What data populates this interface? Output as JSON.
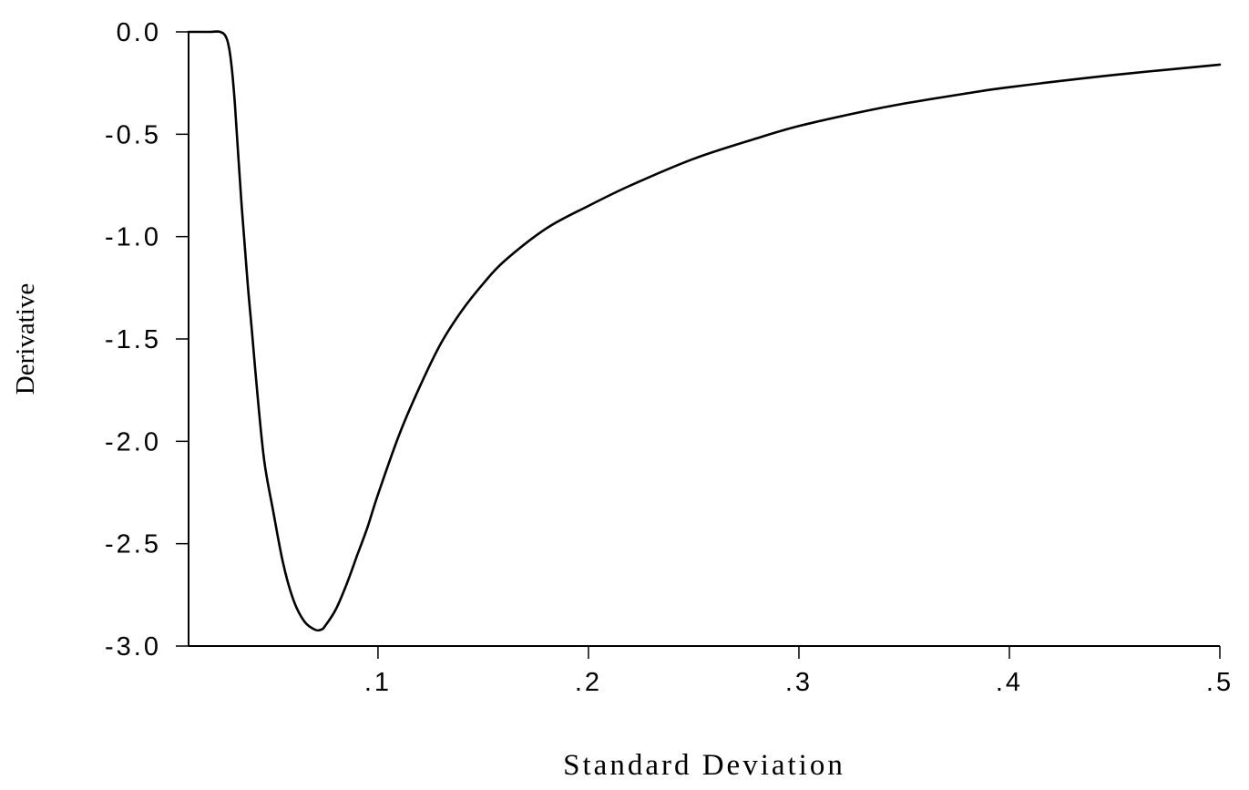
{
  "chart_data": {
    "type": "line",
    "title": "",
    "xlabel": "Standard Deviation",
    "ylabel": "Derivative",
    "xlim": [
      0.01,
      0.5
    ],
    "ylim": [
      -3.0,
      0.0
    ],
    "x_ticks": [
      0.1,
      0.2,
      0.3,
      0.4,
      0.5
    ],
    "x_tick_labels": [
      ".1",
      ".2",
      ".3",
      ".4",
      ".5"
    ],
    "y_ticks": [
      0.0,
      -0.5,
      -1.0,
      -1.5,
      -2.0,
      -2.5,
      -3.0
    ],
    "y_tick_labels": [
      "0.0",
      "-0.5",
      "-1.0",
      "-1.5",
      "-2.0",
      "-2.5",
      "-3.0"
    ],
    "grid": false,
    "legend": "none",
    "line_color": "#000000",
    "series": [
      {
        "x": [
          0.01,
          0.02,
          0.025,
          0.028,
          0.03,
          0.032,
          0.035,
          0.038,
          0.04,
          0.043,
          0.046,
          0.05,
          0.055,
          0.06,
          0.065,
          0.07,
          0.073,
          0.075,
          0.08,
          0.085,
          0.09,
          0.095,
          0.1,
          0.11,
          0.12,
          0.13,
          0.14,
          0.15,
          0.16,
          0.18,
          0.2,
          0.22,
          0.25,
          0.28,
          0.3,
          0.33,
          0.35,
          0.38,
          0.4,
          0.45,
          0.5
        ],
        "y": [
          0.0,
          0.0,
          0.0,
          -0.03,
          -0.13,
          -0.35,
          -0.82,
          -1.22,
          -1.45,
          -1.8,
          -2.1,
          -2.33,
          -2.6,
          -2.78,
          -2.88,
          -2.92,
          -2.92,
          -2.9,
          -2.82,
          -2.7,
          -2.56,
          -2.42,
          -2.26,
          -1.97,
          -1.73,
          -1.52,
          -1.36,
          -1.23,
          -1.12,
          -0.96,
          -0.85,
          -0.75,
          -0.62,
          -0.52,
          -0.46,
          -0.39,
          -0.35,
          -0.3,
          -0.27,
          -0.21,
          -0.16
        ]
      }
    ]
  }
}
